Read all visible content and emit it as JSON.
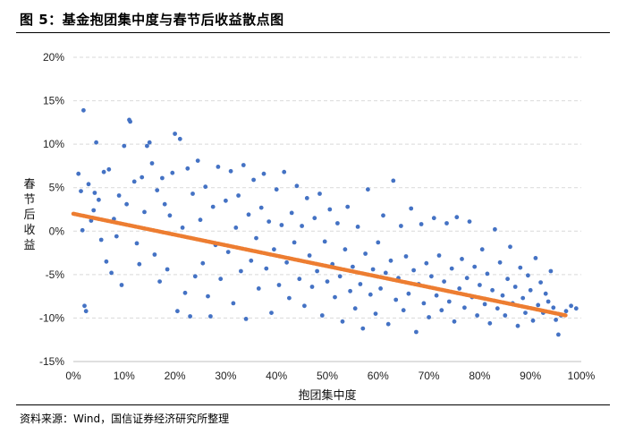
{
  "header": {
    "title": "图 5：基金抱团集中度与春节后收益散点图"
  },
  "footer": {
    "source": "资料来源：Wind，国信证券经济研究所整理"
  },
  "colors": {
    "points": "#4472C4",
    "trend": "#ED7D31",
    "grid": "#D9D9D9"
  },
  "chart_data": {
    "type": "scatter",
    "xlabel": "抱团集中度",
    "ylabel": "春节后收益",
    "xlim": [
      0,
      1
    ],
    "ylim": [
      -0.15,
      0.2
    ],
    "x_ticks": [
      "0%",
      "10%",
      "20%",
      "30%",
      "40%",
      "50%",
      "60%",
      "70%",
      "80%",
      "90%",
      "100%"
    ],
    "y_ticks": [
      "20%",
      "15%",
      "10%",
      "5%",
      "0%",
      "-5%",
      "-10%",
      "-15%"
    ],
    "grid": "horizontal",
    "legend": "none",
    "trendline": {
      "x": [
        0.0,
        0.97
      ],
      "y": [
        0.02,
        -0.097
      ]
    },
    "series": [
      {
        "values": [
          [
            0.01,
            0.066
          ],
          [
            0.015,
            0.046
          ],
          [
            0.018,
            0.001
          ],
          [
            0.02,
            0.139
          ],
          [
            0.022,
            -0.086
          ],
          [
            0.025,
            -0.092
          ],
          [
            0.03,
            0.054
          ],
          [
            0.035,
            0.012
          ],
          [
            0.04,
            0.024
          ],
          [
            0.042,
            0.044
          ],
          [
            0.045,
            0.102
          ],
          [
            0.05,
            0.036
          ],
          [
            0.055,
            -0.01
          ],
          [
            0.06,
            0.068
          ],
          [
            0.065,
            -0.035
          ],
          [
            0.07,
            0.071
          ],
          [
            0.075,
            -0.048
          ],
          [
            0.08,
            0.014
          ],
          [
            0.085,
            -0.006
          ],
          [
            0.09,
            0.041
          ],
          [
            0.095,
            -0.062
          ],
          [
            0.1,
            0.098
          ],
          [
            0.105,
            0.031
          ],
          [
            0.11,
            0.128
          ],
          [
            0.112,
            0.126
          ],
          [
            0.12,
            0.057
          ],
          [
            0.125,
            -0.014
          ],
          [
            0.13,
            -0.038
          ],
          [
            0.135,
            0.062
          ],
          [
            0.14,
            0.022
          ],
          [
            0.145,
            0.098
          ],
          [
            0.15,
            0.102
          ],
          [
            0.155,
            0.078
          ],
          [
            0.16,
            -0.027
          ],
          [
            0.165,
            0.047
          ],
          [
            0.17,
            -0.058
          ],
          [
            0.175,
            0.061
          ],
          [
            0.18,
            0.031
          ],
          [
            0.185,
            -0.044
          ],
          [
            0.19,
            0.018
          ],
          [
            0.195,
            0.067
          ],
          [
            0.2,
            0.112
          ],
          [
            0.205,
            -0.092
          ],
          [
            0.21,
            0.106
          ],
          [
            0.215,
            0.004
          ],
          [
            0.22,
            -0.071
          ],
          [
            0.225,
            0.072
          ],
          [
            0.23,
            -0.098
          ],
          [
            0.235,
            0.043
          ],
          [
            0.24,
            -0.052
          ],
          [
            0.245,
            0.081
          ],
          [
            0.25,
            0.013
          ],
          [
            0.255,
            -0.037
          ],
          [
            0.26,
            0.051
          ],
          [
            0.265,
            -0.075
          ],
          [
            0.27,
            -0.098
          ],
          [
            0.275,
            0.028
          ],
          [
            0.28,
            -0.016
          ],
          [
            0.285,
            0.074
          ],
          [
            0.29,
            -0.055
          ],
          [
            0.3,
            0.035
          ],
          [
            0.305,
            -0.024
          ],
          [
            0.31,
            0.069
          ],
          [
            0.315,
            -0.083
          ],
          [
            0.32,
            0.004
          ],
          [
            0.325,
            0.041
          ],
          [
            0.33,
            -0.046
          ],
          [
            0.335,
            0.076
          ],
          [
            0.34,
            -0.101
          ],
          [
            0.345,
            0.019
          ],
          [
            0.35,
            -0.034
          ],
          [
            0.355,
            0.059
          ],
          [
            0.36,
            -0.008
          ],
          [
            0.365,
            -0.066
          ],
          [
            0.37,
            0.027
          ],
          [
            0.375,
            0.066
          ],
          [
            0.38,
            -0.043
          ],
          [
            0.385,
            0.011
          ],
          [
            0.39,
            -0.094
          ],
          [
            0.395,
            -0.021
          ],
          [
            0.4,
            0.048
          ],
          [
            0.405,
            -0.062
          ],
          [
            0.41,
            0.007
          ],
          [
            0.415,
            0.068
          ],
          [
            0.42,
            -0.036
          ],
          [
            0.425,
            -0.077
          ],
          [
            0.43,
            0.021
          ],
          [
            0.435,
            -0.013
          ],
          [
            0.44,
            0.052
          ],
          [
            0.445,
            -0.055
          ],
          [
            0.45,
            0.006
          ],
          [
            0.455,
            -0.086
          ],
          [
            0.46,
            0.038
          ],
          [
            0.465,
            -0.028
          ],
          [
            0.47,
            -0.064
          ],
          [
            0.475,
            0.015
          ],
          [
            0.48,
            -0.046
          ],
          [
            0.485,
            0.043
          ],
          [
            0.49,
            -0.097
          ],
          [
            0.495,
            -0.012
          ],
          [
            0.5,
            -0.058
          ],
          [
            0.505,
            0.025
          ],
          [
            0.51,
            -0.038
          ],
          [
            0.515,
            -0.076
          ],
          [
            0.52,
            0.009
          ],
          [
            0.525,
            -0.052
          ],
          [
            0.53,
            -0.104
          ],
          [
            0.535,
            -0.021
          ],
          [
            0.54,
            0.028
          ],
          [
            0.545,
            -0.069
          ],
          [
            0.55,
            -0.041
          ],
          [
            0.555,
            -0.089
          ],
          [
            0.56,
            0.005
          ],
          [
            0.565,
            -0.061
          ],
          [
            0.57,
            -0.112
          ],
          [
            0.575,
            -0.026
          ],
          [
            0.58,
            0.048
          ],
          [
            0.585,
            -0.073
          ],
          [
            0.59,
            -0.044
          ],
          [
            0.595,
            -0.095
          ],
          [
            0.6,
            -0.013
          ],
          [
            0.605,
            -0.066
          ],
          [
            0.61,
            0.018
          ],
          [
            0.615,
            -0.048
          ],
          [
            0.62,
            -0.107
          ],
          [
            0.625,
            -0.034
          ],
          [
            0.63,
            0.058
          ],
          [
            0.635,
            -0.079
          ],
          [
            0.64,
            -0.054
          ],
          [
            0.645,
            0.006
          ],
          [
            0.65,
            -0.091
          ],
          [
            0.655,
            -0.029
          ],
          [
            0.66,
            -0.072
          ],
          [
            0.665,
            0.026
          ],
          [
            0.67,
            -0.045
          ],
          [
            0.675,
            -0.116
          ],
          [
            0.68,
            -0.061
          ],
          [
            0.685,
            0.008
          ],
          [
            0.69,
            -0.083
          ],
          [
            0.695,
            -0.037
          ],
          [
            0.7,
            -0.099
          ],
          [
            0.705,
            -0.052
          ],
          [
            0.71,
            0.015
          ],
          [
            0.715,
            -0.074
          ],
          [
            0.72,
            -0.028
          ],
          [
            0.725,
            -0.091
          ],
          [
            0.73,
            -0.058
          ],
          [
            0.735,
            0.009
          ],
          [
            0.74,
            -0.081
          ],
          [
            0.745,
            -0.043
          ],
          [
            0.75,
            -0.104
          ],
          [
            0.755,
            0.016
          ],
          [
            0.76,
            -0.066
          ],
          [
            0.765,
            -0.032
          ],
          [
            0.77,
            -0.088
          ],
          [
            0.775,
            -0.054
          ],
          [
            0.78,
            0.011
          ],
          [
            0.785,
            -0.076
          ],
          [
            0.79,
            -0.041
          ],
          [
            0.795,
            -0.097
          ],
          [
            0.8,
            -0.062
          ],
          [
            0.805,
            -0.021
          ],
          [
            0.81,
            -0.084
          ],
          [
            0.815,
            -0.049
          ],
          [
            0.82,
            -0.106
          ],
          [
            0.825,
            -0.068
          ],
          [
            0.83,
            0.002
          ],
          [
            0.835,
            -0.089
          ],
          [
            0.84,
            -0.036
          ],
          [
            0.845,
            -0.074
          ],
          [
            0.85,
            -0.097
          ],
          [
            0.855,
            -0.055
          ],
          [
            0.86,
            -0.018
          ],
          [
            0.865,
            -0.083
          ],
          [
            0.87,
            -0.064
          ],
          [
            0.875,
            -0.109
          ],
          [
            0.88,
            -0.042
          ],
          [
            0.885,
            -0.077
          ],
          [
            0.89,
            -0.094
          ],
          [
            0.895,
            -0.051
          ],
          [
            0.9,
            -0.068
          ],
          [
            0.905,
            -0.103
          ],
          [
            0.91,
            -0.031
          ],
          [
            0.915,
            -0.085
          ],
          [
            0.92,
            -0.059
          ],
          [
            0.925,
            -0.094
          ],
          [
            0.93,
            -0.072
          ],
          [
            0.935,
            -0.081
          ],
          [
            0.94,
            -0.046
          ],
          [
            0.945,
            -0.088
          ],
          [
            0.95,
            -0.102
          ],
          [
            0.955,
            -0.119
          ],
          [
            0.96,
            -0.097
          ],
          [
            0.97,
            -0.092
          ],
          [
            0.98,
            -0.086
          ],
          [
            0.99,
            -0.089
          ]
        ]
      }
    ]
  }
}
